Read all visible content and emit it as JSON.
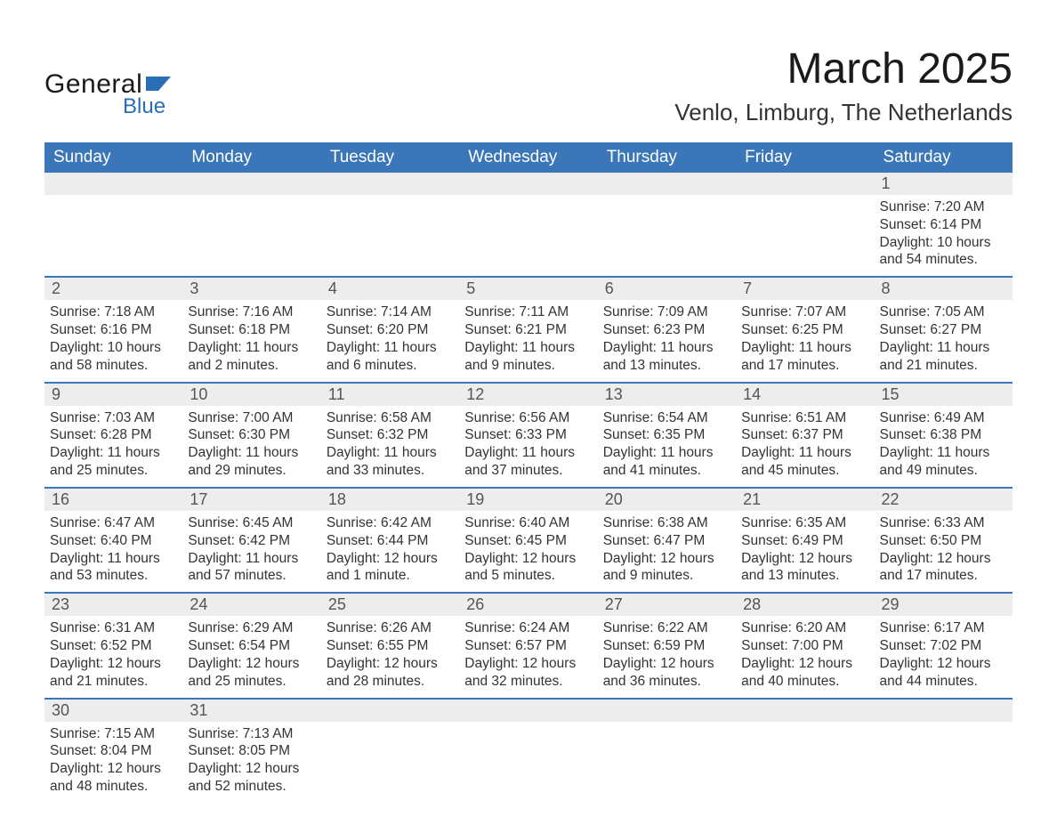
{
  "brand": {
    "word1": "General",
    "word2": "Blue",
    "flag_color": "#2a6fb5",
    "text_color": "#1a1a1a"
  },
  "title": "March 2025",
  "location": "Venlo, Limburg, The Netherlands",
  "colors": {
    "header_bg": "#3a76b8",
    "header_text": "#ffffff",
    "daynum_bg": "#ededed",
    "daynum_text": "#555555",
    "body_text": "#333333",
    "row_border": "#3a76b8",
    "page_bg": "#ffffff"
  },
  "day_headers": [
    "Sunday",
    "Monday",
    "Tuesday",
    "Wednesday",
    "Thursday",
    "Friday",
    "Saturday"
  ],
  "weeks": [
    [
      null,
      null,
      null,
      null,
      null,
      null,
      {
        "n": "1",
        "sunrise": "7:20 AM",
        "sunset": "6:14 PM",
        "daylight": "10 hours and 54 minutes."
      }
    ],
    [
      {
        "n": "2",
        "sunrise": "7:18 AM",
        "sunset": "6:16 PM",
        "daylight": "10 hours and 58 minutes."
      },
      {
        "n": "3",
        "sunrise": "7:16 AM",
        "sunset": "6:18 PM",
        "daylight": "11 hours and 2 minutes."
      },
      {
        "n": "4",
        "sunrise": "7:14 AM",
        "sunset": "6:20 PM",
        "daylight": "11 hours and 6 minutes."
      },
      {
        "n": "5",
        "sunrise": "7:11 AM",
        "sunset": "6:21 PM",
        "daylight": "11 hours and 9 minutes."
      },
      {
        "n": "6",
        "sunrise": "7:09 AM",
        "sunset": "6:23 PM",
        "daylight": "11 hours and 13 minutes."
      },
      {
        "n": "7",
        "sunrise": "7:07 AM",
        "sunset": "6:25 PM",
        "daylight": "11 hours and 17 minutes."
      },
      {
        "n": "8",
        "sunrise": "7:05 AM",
        "sunset": "6:27 PM",
        "daylight": "11 hours and 21 minutes."
      }
    ],
    [
      {
        "n": "9",
        "sunrise": "7:03 AM",
        "sunset": "6:28 PM",
        "daylight": "11 hours and 25 minutes."
      },
      {
        "n": "10",
        "sunrise": "7:00 AM",
        "sunset": "6:30 PM",
        "daylight": "11 hours and 29 minutes."
      },
      {
        "n": "11",
        "sunrise": "6:58 AM",
        "sunset": "6:32 PM",
        "daylight": "11 hours and 33 minutes."
      },
      {
        "n": "12",
        "sunrise": "6:56 AM",
        "sunset": "6:33 PM",
        "daylight": "11 hours and 37 minutes."
      },
      {
        "n": "13",
        "sunrise": "6:54 AM",
        "sunset": "6:35 PM",
        "daylight": "11 hours and 41 minutes."
      },
      {
        "n": "14",
        "sunrise": "6:51 AM",
        "sunset": "6:37 PM",
        "daylight": "11 hours and 45 minutes."
      },
      {
        "n": "15",
        "sunrise": "6:49 AM",
        "sunset": "6:38 PM",
        "daylight": "11 hours and 49 minutes."
      }
    ],
    [
      {
        "n": "16",
        "sunrise": "6:47 AM",
        "sunset": "6:40 PM",
        "daylight": "11 hours and 53 minutes."
      },
      {
        "n": "17",
        "sunrise": "6:45 AM",
        "sunset": "6:42 PM",
        "daylight": "11 hours and 57 minutes."
      },
      {
        "n": "18",
        "sunrise": "6:42 AM",
        "sunset": "6:44 PM",
        "daylight": "12 hours and 1 minute."
      },
      {
        "n": "19",
        "sunrise": "6:40 AM",
        "sunset": "6:45 PM",
        "daylight": "12 hours and 5 minutes."
      },
      {
        "n": "20",
        "sunrise": "6:38 AM",
        "sunset": "6:47 PM",
        "daylight": "12 hours and 9 minutes."
      },
      {
        "n": "21",
        "sunrise": "6:35 AM",
        "sunset": "6:49 PM",
        "daylight": "12 hours and 13 minutes."
      },
      {
        "n": "22",
        "sunrise": "6:33 AM",
        "sunset": "6:50 PM",
        "daylight": "12 hours and 17 minutes."
      }
    ],
    [
      {
        "n": "23",
        "sunrise": "6:31 AM",
        "sunset": "6:52 PM",
        "daylight": "12 hours and 21 minutes."
      },
      {
        "n": "24",
        "sunrise": "6:29 AM",
        "sunset": "6:54 PM",
        "daylight": "12 hours and 25 minutes."
      },
      {
        "n": "25",
        "sunrise": "6:26 AM",
        "sunset": "6:55 PM",
        "daylight": "12 hours and 28 minutes."
      },
      {
        "n": "26",
        "sunrise": "6:24 AM",
        "sunset": "6:57 PM",
        "daylight": "12 hours and 32 minutes."
      },
      {
        "n": "27",
        "sunrise": "6:22 AM",
        "sunset": "6:59 PM",
        "daylight": "12 hours and 36 minutes."
      },
      {
        "n": "28",
        "sunrise": "6:20 AM",
        "sunset": "7:00 PM",
        "daylight": "12 hours and 40 minutes."
      },
      {
        "n": "29",
        "sunrise": "6:17 AM",
        "sunset": "7:02 PM",
        "daylight": "12 hours and 44 minutes."
      }
    ],
    [
      {
        "n": "30",
        "sunrise": "7:15 AM",
        "sunset": "8:04 PM",
        "daylight": "12 hours and 48 minutes."
      },
      {
        "n": "31",
        "sunrise": "7:13 AM",
        "sunset": "8:05 PM",
        "daylight": "12 hours and 52 minutes."
      },
      null,
      null,
      null,
      null,
      null
    ]
  ],
  "labels": {
    "sunrise": "Sunrise: ",
    "sunset": "Sunset: ",
    "daylight": "Daylight: "
  }
}
